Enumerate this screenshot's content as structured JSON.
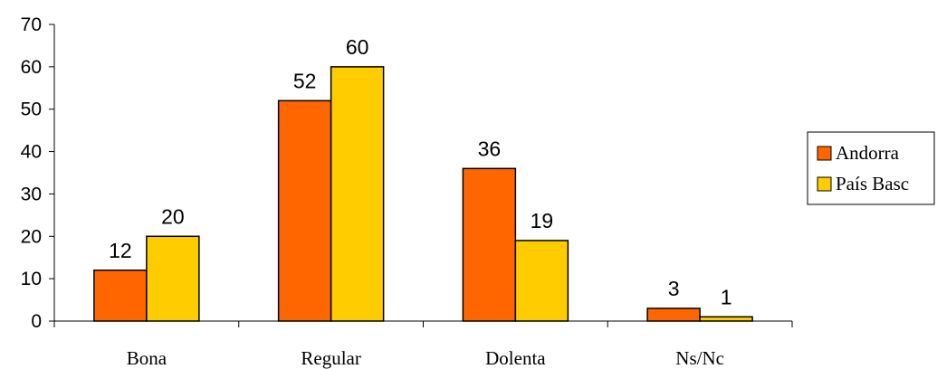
{
  "chart_data": {
    "type": "bar",
    "categories": [
      "Bona",
      "Regular",
      "Dolenta",
      "Ns/Nc"
    ],
    "series": [
      {
        "name": "Andorra",
        "values": [
          12,
          52,
          36,
          3
        ],
        "color": "#ff6600"
      },
      {
        "name": "País Basc",
        "values": [
          20,
          60,
          19,
          1
        ],
        "color": "#ffcc00"
      }
    ],
    "y_ticks": [
      "0",
      "10",
      "20",
      "30",
      "40",
      "50",
      "60",
      "70"
    ],
    "ylim": [
      0,
      70
    ],
    "data_labels": true,
    "grid": false,
    "legend_position": "right"
  }
}
